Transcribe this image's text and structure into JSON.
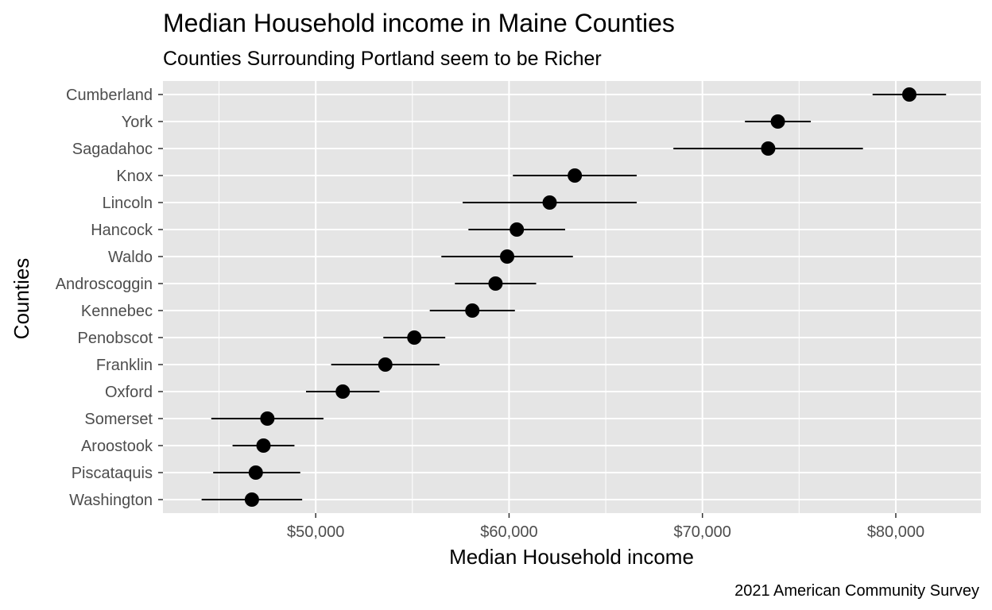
{
  "chart_data": {
    "type": "scatter",
    "subtype": "dot-with-error-bars",
    "title": "Median Household income in Maine Counties",
    "subtitle": "Counties Surrounding Portland seem to be Richer",
    "xlabel": "Median Household income",
    "ylabel": "Counties",
    "caption": "2021 American Community Survey",
    "xlim": [
      42100,
      84400
    ],
    "x_ticks": [
      50000,
      60000,
      70000,
      80000
    ],
    "x_tick_labels": [
      "$50,000",
      "$60,000",
      "$70,000",
      "$80,000"
    ],
    "grid": true,
    "legend": "none",
    "colors": {
      "panel": "#e5e5e5",
      "grid": "#ffffff",
      "point": "#000000",
      "tick_text": "#4d4d4d"
    },
    "points": [
      {
        "county": "Cumberland",
        "estimate": 80700,
        "low": 78800,
        "high": 82600
      },
      {
        "county": "York",
        "estimate": 73900,
        "low": 72200,
        "high": 75600
      },
      {
        "county": "Sagadahoc",
        "estimate": 73400,
        "low": 68500,
        "high": 78300
      },
      {
        "county": "Knox",
        "estimate": 63400,
        "low": 60200,
        "high": 66600
      },
      {
        "county": "Lincoln",
        "estimate": 62100,
        "low": 57600,
        "high": 66600
      },
      {
        "county": "Hancock",
        "estimate": 60400,
        "low": 57900,
        "high": 62900
      },
      {
        "county": "Waldo",
        "estimate": 59900,
        "low": 56500,
        "high": 63300
      },
      {
        "county": "Androscoggin",
        "estimate": 59300,
        "low": 57200,
        "high": 61400
      },
      {
        "county": "Kennebec",
        "estimate": 58100,
        "low": 55900,
        "high": 60300
      },
      {
        "county": "Penobscot",
        "estimate": 55100,
        "low": 53500,
        "high": 56700
      },
      {
        "county": "Franklin",
        "estimate": 53600,
        "low": 50800,
        "high": 56400
      },
      {
        "county": "Oxford",
        "estimate": 51400,
        "low": 49500,
        "high": 53300
      },
      {
        "county": "Somerset",
        "estimate": 47500,
        "low": 44600,
        "high": 50400
      },
      {
        "county": "Aroostook",
        "estimate": 47300,
        "low": 45700,
        "high": 48900
      },
      {
        "county": "Piscataquis",
        "estimate": 46900,
        "low": 44700,
        "high": 49200
      },
      {
        "county": "Washington",
        "estimate": 46700,
        "low": 44100,
        "high": 49300
      }
    ]
  }
}
